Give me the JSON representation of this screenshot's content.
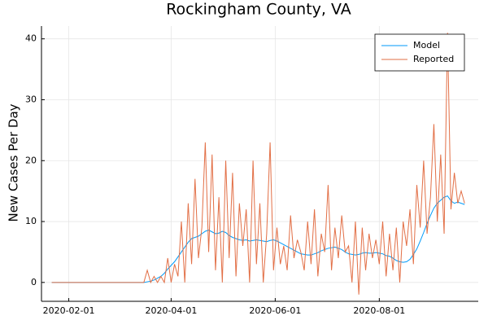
{
  "chart_data": {
    "type": "line",
    "title": "Rockingham County, VA",
    "y_label": "New Cases Per Day",
    "x": [
      "2020-01-22",
      "2020-03-14",
      "2020-03-16",
      "2020-03-18",
      "2020-03-20",
      "2020-03-22",
      "2020-03-24",
      "2020-03-26",
      "2020-03-28",
      "2020-03-30",
      "2020-04-01",
      "2020-04-03",
      "2020-04-05",
      "2020-04-07",
      "2020-04-09",
      "2020-04-11",
      "2020-04-13",
      "2020-04-15",
      "2020-04-17",
      "2020-04-19",
      "2020-04-21",
      "2020-04-23",
      "2020-04-25",
      "2020-04-27",
      "2020-04-29",
      "2020-05-01",
      "2020-05-03",
      "2020-05-05",
      "2020-05-07",
      "2020-05-09",
      "2020-05-11",
      "2020-05-13",
      "2020-05-15",
      "2020-05-17",
      "2020-05-19",
      "2020-05-21",
      "2020-05-23",
      "2020-05-25",
      "2020-05-27",
      "2020-05-29",
      "2020-05-31",
      "2020-06-02",
      "2020-06-04",
      "2020-06-06",
      "2020-06-08",
      "2020-06-10",
      "2020-06-12",
      "2020-06-14",
      "2020-06-16",
      "2020-06-18",
      "2020-06-20",
      "2020-06-22",
      "2020-06-24",
      "2020-06-26",
      "2020-06-28",
      "2020-06-30",
      "2020-07-02",
      "2020-07-04",
      "2020-07-06",
      "2020-07-08",
      "2020-07-10",
      "2020-07-12",
      "2020-07-14",
      "2020-07-16",
      "2020-07-18",
      "2020-07-20",
      "2020-07-22",
      "2020-07-24",
      "2020-07-26",
      "2020-07-28",
      "2020-07-30",
      "2020-08-01",
      "2020-08-03",
      "2020-08-05",
      "2020-08-07",
      "2020-08-09",
      "2020-08-11",
      "2020-08-13",
      "2020-08-15",
      "2020-08-17",
      "2020-08-19",
      "2020-08-21",
      "2020-08-23",
      "2020-08-25",
      "2020-08-27",
      "2020-08-29",
      "2020-08-31",
      "2020-09-02",
      "2020-09-04",
      "2020-09-06",
      "2020-09-08",
      "2020-09-10",
      "2020-09-12",
      "2020-09-14",
      "2020-09-16",
      "2020-09-18",
      "2020-09-20"
    ],
    "series": [
      {
        "name": "Model",
        "color": "#009af9",
        "values": [
          0,
          0,
          0,
          0.1,
          0.2,
          0.4,
          0.7,
          1.0,
          1.5,
          2.2,
          2.8,
          3.4,
          4.2,
          5.0,
          5.8,
          6.6,
          7.2,
          7.4,
          7.6,
          8.0,
          8.4,
          8.6,
          8.3,
          8.0,
          8.1,
          8.4,
          8.2,
          7.7,
          7.4,
          7.2,
          7.0,
          6.9,
          7.0,
          6.8,
          6.9,
          7.0,
          6.9,
          6.8,
          6.7,
          6.9,
          7.0,
          6.8,
          6.5,
          6.2,
          5.9,
          5.6,
          5.3,
          5.0,
          4.7,
          4.6,
          4.5,
          4.5,
          4.7,
          4.9,
          5.2,
          5.4,
          5.6,
          5.7,
          5.8,
          5.6,
          5.4,
          5.0,
          4.7,
          4.6,
          4.5,
          4.6,
          4.8,
          4.9,
          4.8,
          4.8,
          4.9,
          4.8,
          4.7,
          4.4,
          4.3,
          4.0,
          3.6,
          3.4,
          3.3,
          3.4,
          3.8,
          4.6,
          5.5,
          6.8,
          8.2,
          9.7,
          11.0,
          12.2,
          13.0,
          13.5,
          14.0,
          14.2,
          13.4,
          13.0,
          13.2,
          13.0,
          12.8
        ]
      },
      {
        "name": "Reported",
        "color": "#e26f46",
        "values": [
          0,
          0,
          0,
          2,
          0,
          1,
          0,
          1,
          0,
          4,
          0,
          3,
          1,
          10,
          0,
          13,
          3,
          17,
          4,
          9,
          23,
          5,
          21,
          2,
          14,
          0,
          20,
          4,
          18,
          1,
          13,
          6,
          12,
          0,
          20,
          3,
          13,
          0,
          8,
          23,
          2,
          9,
          3,
          6,
          2,
          11,
          4,
          7,
          5,
          2,
          10,
          3,
          12,
          1,
          8,
          5,
          16,
          2,
          9,
          4,
          11,
          5,
          6,
          0,
          10,
          -2,
          9,
          2,
          8,
          4,
          7,
          3,
          10,
          1,
          8,
          2,
          9,
          0,
          10,
          6,
          12,
          3,
          16,
          9,
          20,
          8,
          14,
          26,
          10,
          21,
          8,
          41,
          12,
          18,
          13,
          15,
          13
        ]
      }
    ],
    "xlim": [
      "2020-01-16",
      "2020-09-28"
    ],
    "xticks": [
      "2020-02-01",
      "2020-04-01",
      "2020-06-01",
      "2020-08-01"
    ],
    "ylim": [
      -3.1,
      42.1
    ],
    "yticks": [
      0,
      10,
      20,
      30,
      40
    ],
    "grid": true,
    "legend": "top-right"
  }
}
